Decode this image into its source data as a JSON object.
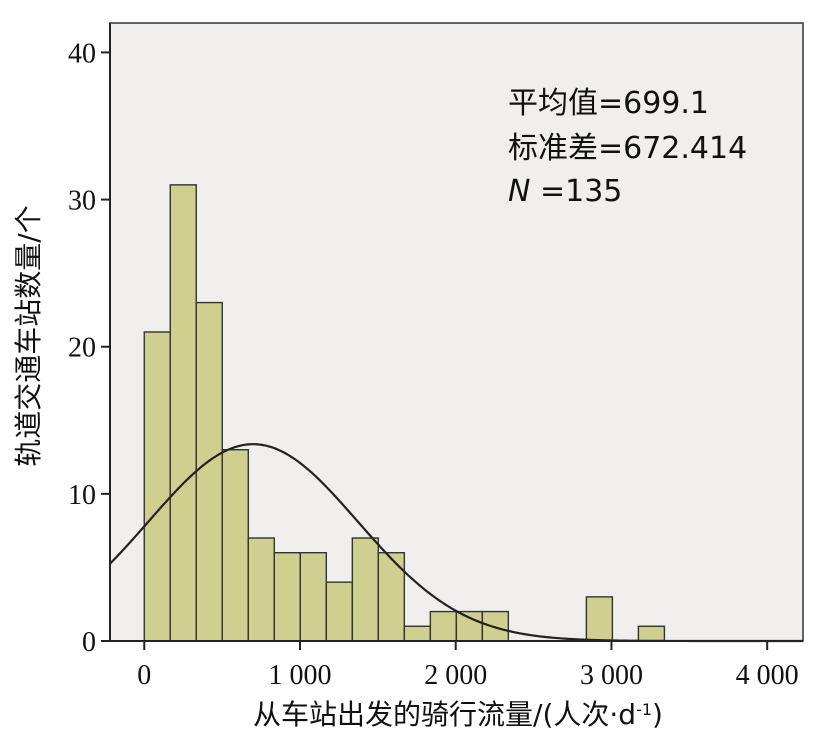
{
  "chart_data": {
    "type": "bar",
    "subtype": "histogram",
    "title": "",
    "xlabel": "从车站出发的骑行流量/(人次·d",
    "xlabel_sup": "-1",
    "xlabel_close": ")",
    "ylabel": "轨道交通车站数量/个",
    "xlim": [
      -220,
      4230
    ],
    "ylim": [
      0,
      42
    ],
    "x_ticks": [
      0,
      1000,
      2000,
      3000,
      4000
    ],
    "x_tick_labels": [
      "0",
      "1 000",
      "2 000",
      "3 000",
      "4 000"
    ],
    "y_ticks": [
      0,
      10,
      20,
      30,
      40
    ],
    "y_tick_labels": [
      "0",
      "10",
      "20",
      "30",
      "40"
    ],
    "bin_width": 167,
    "bins": [
      {
        "start": 0,
        "count": 21
      },
      {
        "start": 167,
        "count": 31
      },
      {
        "start": 334,
        "count": 23
      },
      {
        "start": 501,
        "count": 13
      },
      {
        "start": 668,
        "count": 7
      },
      {
        "start": 835,
        "count": 6
      },
      {
        "start": 1002,
        "count": 6
      },
      {
        "start": 1169,
        "count": 4
      },
      {
        "start": 1336,
        "count": 7
      },
      {
        "start": 1503,
        "count": 6
      },
      {
        "start": 1670,
        "count": 1
      },
      {
        "start": 1837,
        "count": 2
      },
      {
        "start": 2004,
        "count": 2
      },
      {
        "start": 2171,
        "count": 2
      },
      {
        "start": 2839,
        "count": 3
      },
      {
        "start": 3173,
        "count": 1
      }
    ],
    "normal_curve": {
      "mean": 699.1,
      "sd": 672.414,
      "n": 135
    },
    "grid": false,
    "colors": {
      "bar_fill": "#cfcf8f",
      "bar_edge": "#333333",
      "plot_background": "#f0efed",
      "curve": "#222222"
    }
  },
  "stats": {
    "mean_label": "平均值=699.1",
    "sd_label": "标准差=672.414",
    "n_symbol": "N",
    "n_value": " =135"
  }
}
